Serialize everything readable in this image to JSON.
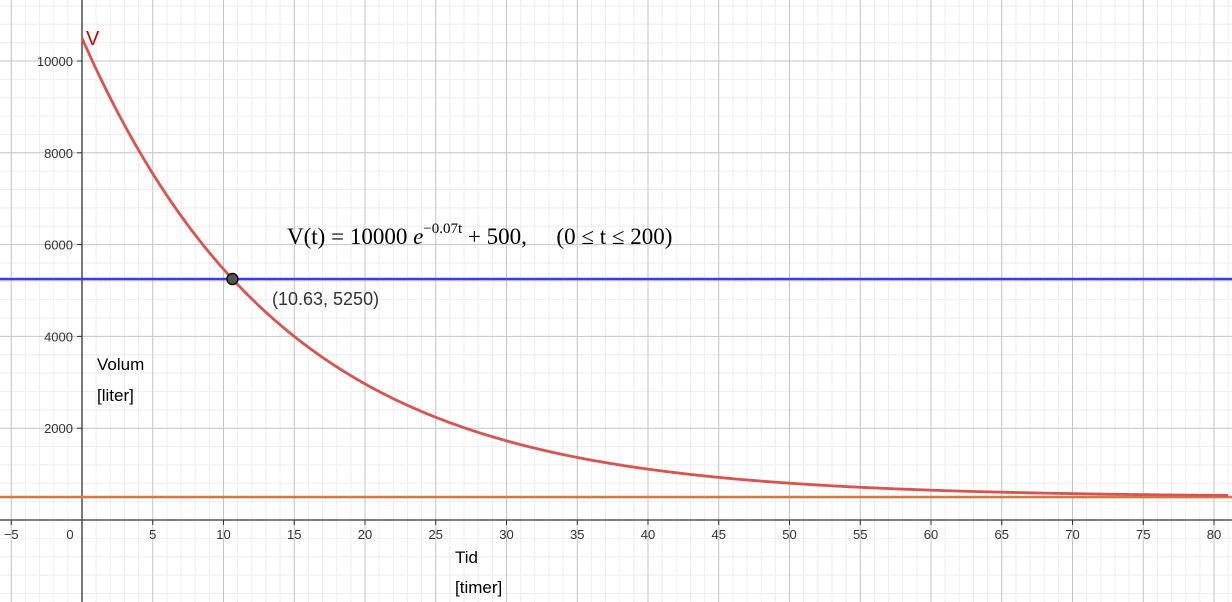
{
  "chart_data": {
    "type": "line",
    "xlim": [
      -6,
      81
    ],
    "ylim": [
      -1800,
      11300
    ],
    "x_ticks": [
      -5,
      0,
      5,
      10,
      15,
      20,
      25,
      30,
      35,
      40,
      45,
      50,
      55,
      60,
      65,
      70,
      75,
      80
    ],
    "x_tick_labels": [
      "−5",
      "0",
      "5",
      "10",
      "15",
      "20",
      "25",
      "30",
      "35",
      "40",
      "45",
      "50",
      "55",
      "60",
      "65",
      "70",
      "75",
      "80"
    ],
    "y_ticks": [
      2000,
      4000,
      6000,
      8000,
      10000
    ],
    "y_tick_labels": [
      "2000",
      "4000",
      "6000",
      "8000",
      "10000"
    ],
    "grid": true,
    "series": [
      {
        "name": "V",
        "kind": "function",
        "a": 10000,
        "k": -0.07,
        "c": 500,
        "domain": [
          0,
          200
        ],
        "color": "#d9534f"
      }
    ],
    "hlines": [
      {
        "y": 5250,
        "color": "#3b3bf0"
      },
      {
        "y": 500,
        "color": "#d8784a"
      }
    ],
    "point": {
      "x": 10.63,
      "y": 5250,
      "label": "(10.63, 5250)"
    },
    "xlabel_line1": "Tid",
    "xlabel_line2": "[timer]",
    "ylabel_line1": "Volum",
    "ylabel_line2": "[liter]",
    "curve_label": "V",
    "formula": {
      "lhs": "V(t)",
      "eq": "=",
      "coef": "10000",
      "base": "e",
      "exponent": "−0.07t",
      "tail": "+ 500,",
      "domain_text": "(0 ≤ t ≤ 200)"
    }
  }
}
